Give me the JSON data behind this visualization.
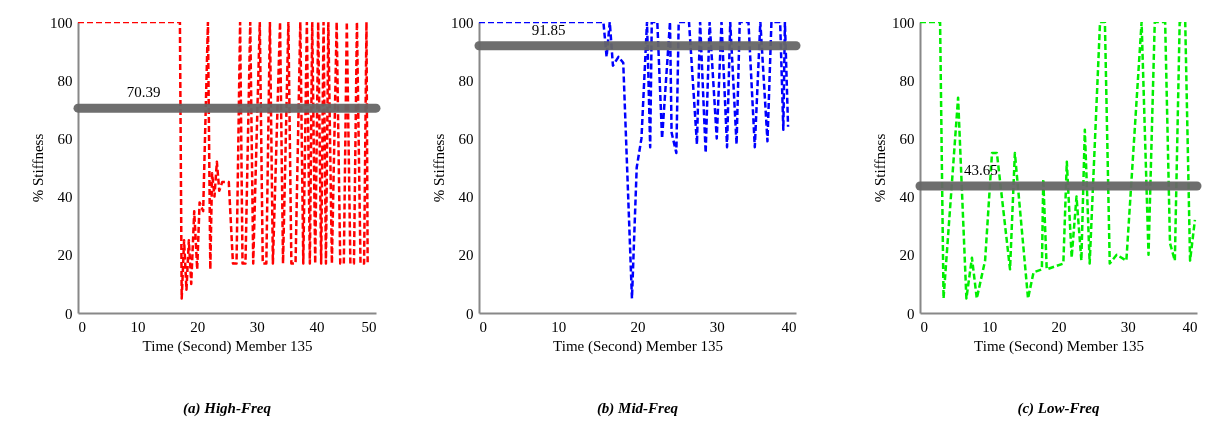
{
  "chart_data": [
    {
      "type": "line",
      "title": "(a) High-Freq",
      "xlabel": "Time (Second) Member 135",
      "ylabel": "% Stiffness",
      "xlim": [
        0,
        50
      ],
      "ylim": [
        0,
        100
      ],
      "xticks": [
        0,
        10,
        20,
        30,
        40,
        50
      ],
      "yticks": [
        0,
        20,
        40,
        60,
        80,
        100
      ],
      "line_style": "dashed",
      "marker": "none",
      "series": [
        {
          "color": "#ff0000",
          "x": [
            0,
            17.1,
            17.4,
            17.8,
            18.2,
            18.6,
            19.0,
            19.5,
            20.0,
            20.4,
            21.0,
            21.8,
            22.2,
            22.5,
            22.9,
            23.3,
            23.7,
            24.2,
            25.3,
            26.0,
            26.6,
            27.2,
            27.6,
            28.1,
            28.9,
            29.4,
            30.5,
            31.0,
            31.6,
            32.2,
            32.7,
            33.9,
            34.4,
            35.3,
            35.8,
            36.5,
            37.3,
            37.8,
            38.4,
            38.9,
            39.3,
            39.8,
            40.3,
            40.8,
            41.2,
            41.6,
            42.0,
            42.6,
            43.4,
            44.0,
            44.6,
            45.1,
            45.7,
            46.3,
            46.8,
            47.4,
            48.0,
            48.4,
            48.6
          ],
          "values": [
            100,
            100,
            5,
            25,
            8,
            25,
            10,
            35,
            15,
            38,
            35,
            100,
            15,
            48,
            40,
            52,
            42,
            45,
            45,
            17,
            17,
            100,
            17,
            17,
            100,
            17,
            100,
            17,
            17,
            100,
            17,
            100,
            17,
            100,
            17,
            17,
            100,
            17,
            100,
            17,
            100,
            17,
            100,
            17,
            100,
            17,
            100,
            17,
            100,
            17,
            17,
            100,
            17,
            17,
            100,
            17,
            17,
            100,
            17
          ]
        }
      ],
      "ref_lines": [
        {
          "axis": "y",
          "value": 70.39,
          "label": "70.39",
          "color": "#666666"
        }
      ]
    },
    {
      "type": "line",
      "title": "(b) Mid-Freq",
      "xlabel": "Time (Second) Member 135",
      "ylabel": "% Stiffness",
      "xlim": [
        0,
        40
      ],
      "ylim": [
        0,
        100
      ],
      "xticks": [
        0,
        10,
        20,
        30,
        40
      ],
      "yticks": [
        0,
        20,
        40,
        60,
        80,
        100
      ],
      "line_style": "dashed",
      "marker": "none",
      "series": [
        {
          "color": "#0000ff",
          "x": [
            0,
            15.7,
            16.1,
            16.5,
            16.9,
            17.6,
            18.2,
            19.3,
            19.9,
            20.5,
            21.2,
            21.6,
            21.8,
            22.5,
            23.1,
            24.1,
            24.3,
            24.9,
            25.2,
            26.5,
            27.5,
            27.9,
            28.6,
            29.1,
            30.0,
            30.6,
            31.3,
            31.7,
            32.5,
            32.9,
            34.0,
            34.8,
            35.5,
            36.4,
            36.9,
            38.0,
            38.4,
            38.6,
            39.0
          ],
          "values": [
            100,
            100,
            88,
            100,
            85,
            88,
            86,
            5,
            50,
            60,
            100,
            57,
            100,
            100,
            60,
            100,
            62,
            55,
            100,
            100,
            58,
            100,
            55,
            100,
            60,
            100,
            57,
            100,
            58,
            100,
            100,
            57,
            100,
            59,
            100,
            100,
            63,
            100,
            64
          ]
        }
      ],
      "ref_lines": [
        {
          "axis": "y",
          "value": 91.85,
          "label": "91.85",
          "color": "#666666"
        }
      ]
    },
    {
      "type": "line",
      "title": "(c)  Low-Freq",
      "xlabel": "Time (Second) Member 135",
      "ylabel": "% Stiffness",
      "xlim": [
        0,
        40
      ],
      "ylim": [
        0,
        100
      ],
      "xticks": [
        0,
        10,
        20,
        30,
        40
      ],
      "yticks": [
        0,
        20,
        40,
        60,
        80,
        100
      ],
      "line_style": "dashed",
      "marker": "none",
      "series": [
        {
          "color": "#00ee00",
          "x": [
            0,
            2.9,
            3.4,
            5.5,
            6.7,
            7.5,
            8.2,
            9.4,
            10.4,
            11.1,
            13.0,
            13.7,
            15.6,
            16.4,
            17.6,
            17.8,
            18.3,
            20.7,
            21.2,
            21.9,
            22.6,
            23.3,
            23.8,
            24.5,
            26.0,
            26.7,
            27.4,
            28.4,
            29.8,
            32.0,
            33.0,
            33.9,
            35.4,
            36.1,
            36.8,
            37.5,
            38.3,
            39.0,
            39.7
          ],
          "values": [
            100,
            100,
            5,
            74,
            5,
            19,
            5,
            18,
            55,
            55,
            15,
            55,
            5,
            14,
            15,
            46,
            15,
            17,
            52,
            19,
            40,
            18,
            63,
            17,
            100,
            100,
            17,
            20,
            18,
            100,
            20,
            100,
            100,
            24,
            18,
            100,
            100,
            18,
            32
          ]
        }
      ],
      "ref_lines": [
        {
          "axis": "y",
          "value": 43.65,
          "label": "43.65",
          "color": "#666666"
        }
      ]
    }
  ]
}
